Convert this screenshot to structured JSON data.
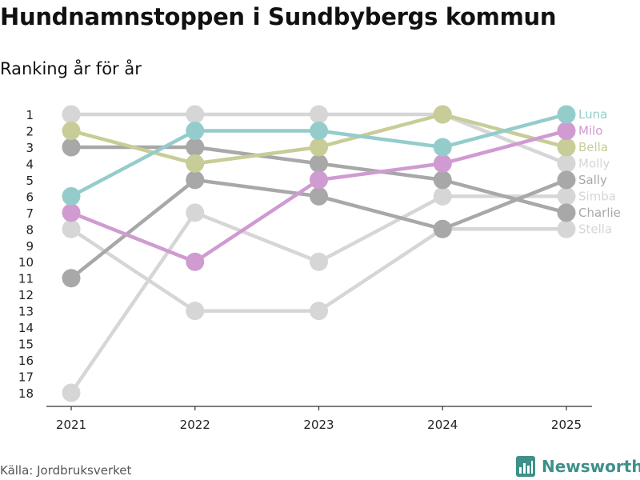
{
  "title": "Hundnamnstoppen i Sundbybergs kommun",
  "subtitle": "Ranking år för år",
  "source": "Källa: Jordbruksverket",
  "brand": {
    "name": "Newsworthy",
    "icon": "bar-chart-logo-icon",
    "color": "#3f8f8a"
  },
  "chart_data": {
    "type": "line",
    "title": "Hundnamnstoppen i Sundbybergs kommun",
    "subtitle": "Ranking år för år",
    "xlabel": "",
    "ylabel": "",
    "x": [
      "2021",
      "2022",
      "2023",
      "2024",
      "2025"
    ],
    "y_ticks": [
      "1",
      "2",
      "3",
      "4",
      "5",
      "6",
      "7",
      "8",
      "9",
      "10",
      "11",
      "12",
      "13",
      "14",
      "15",
      "16",
      "17",
      "18"
    ],
    "ylim": [
      1,
      18
    ],
    "y_reversed": true,
    "series": [
      {
        "name": "Stella",
        "color": "#d6d6d6",
        "values": [
          8,
          13,
          13,
          8,
          8
        ]
      },
      {
        "name": "Simba",
        "color": "#d6d6d6",
        "values": [
          18,
          7,
          10,
          6,
          6
        ]
      },
      {
        "name": "Molly",
        "color": "#d6d6d6",
        "values": [
          1,
          1,
          1,
          1,
          4
        ]
      },
      {
        "name": "Charlie",
        "color": "#a8a8a8",
        "values": [
          3,
          3,
          4,
          5,
          7
        ]
      },
      {
        "name": "Sally",
        "color": "#a8a8a8",
        "values": [
          11,
          5,
          6,
          8,
          5
        ]
      },
      {
        "name": "Bella",
        "color": "#c8cc96",
        "values": [
          2,
          4,
          3,
          1,
          3
        ]
      },
      {
        "name": "Milo",
        "color": "#cf9bd0",
        "values": [
          7,
          10,
          5,
          4,
          2
        ]
      },
      {
        "name": "Luna",
        "color": "#94cccc",
        "values": [
          6,
          2,
          2,
          3,
          1
        ]
      }
    ],
    "legend": "end-of-line labels, right"
  }
}
